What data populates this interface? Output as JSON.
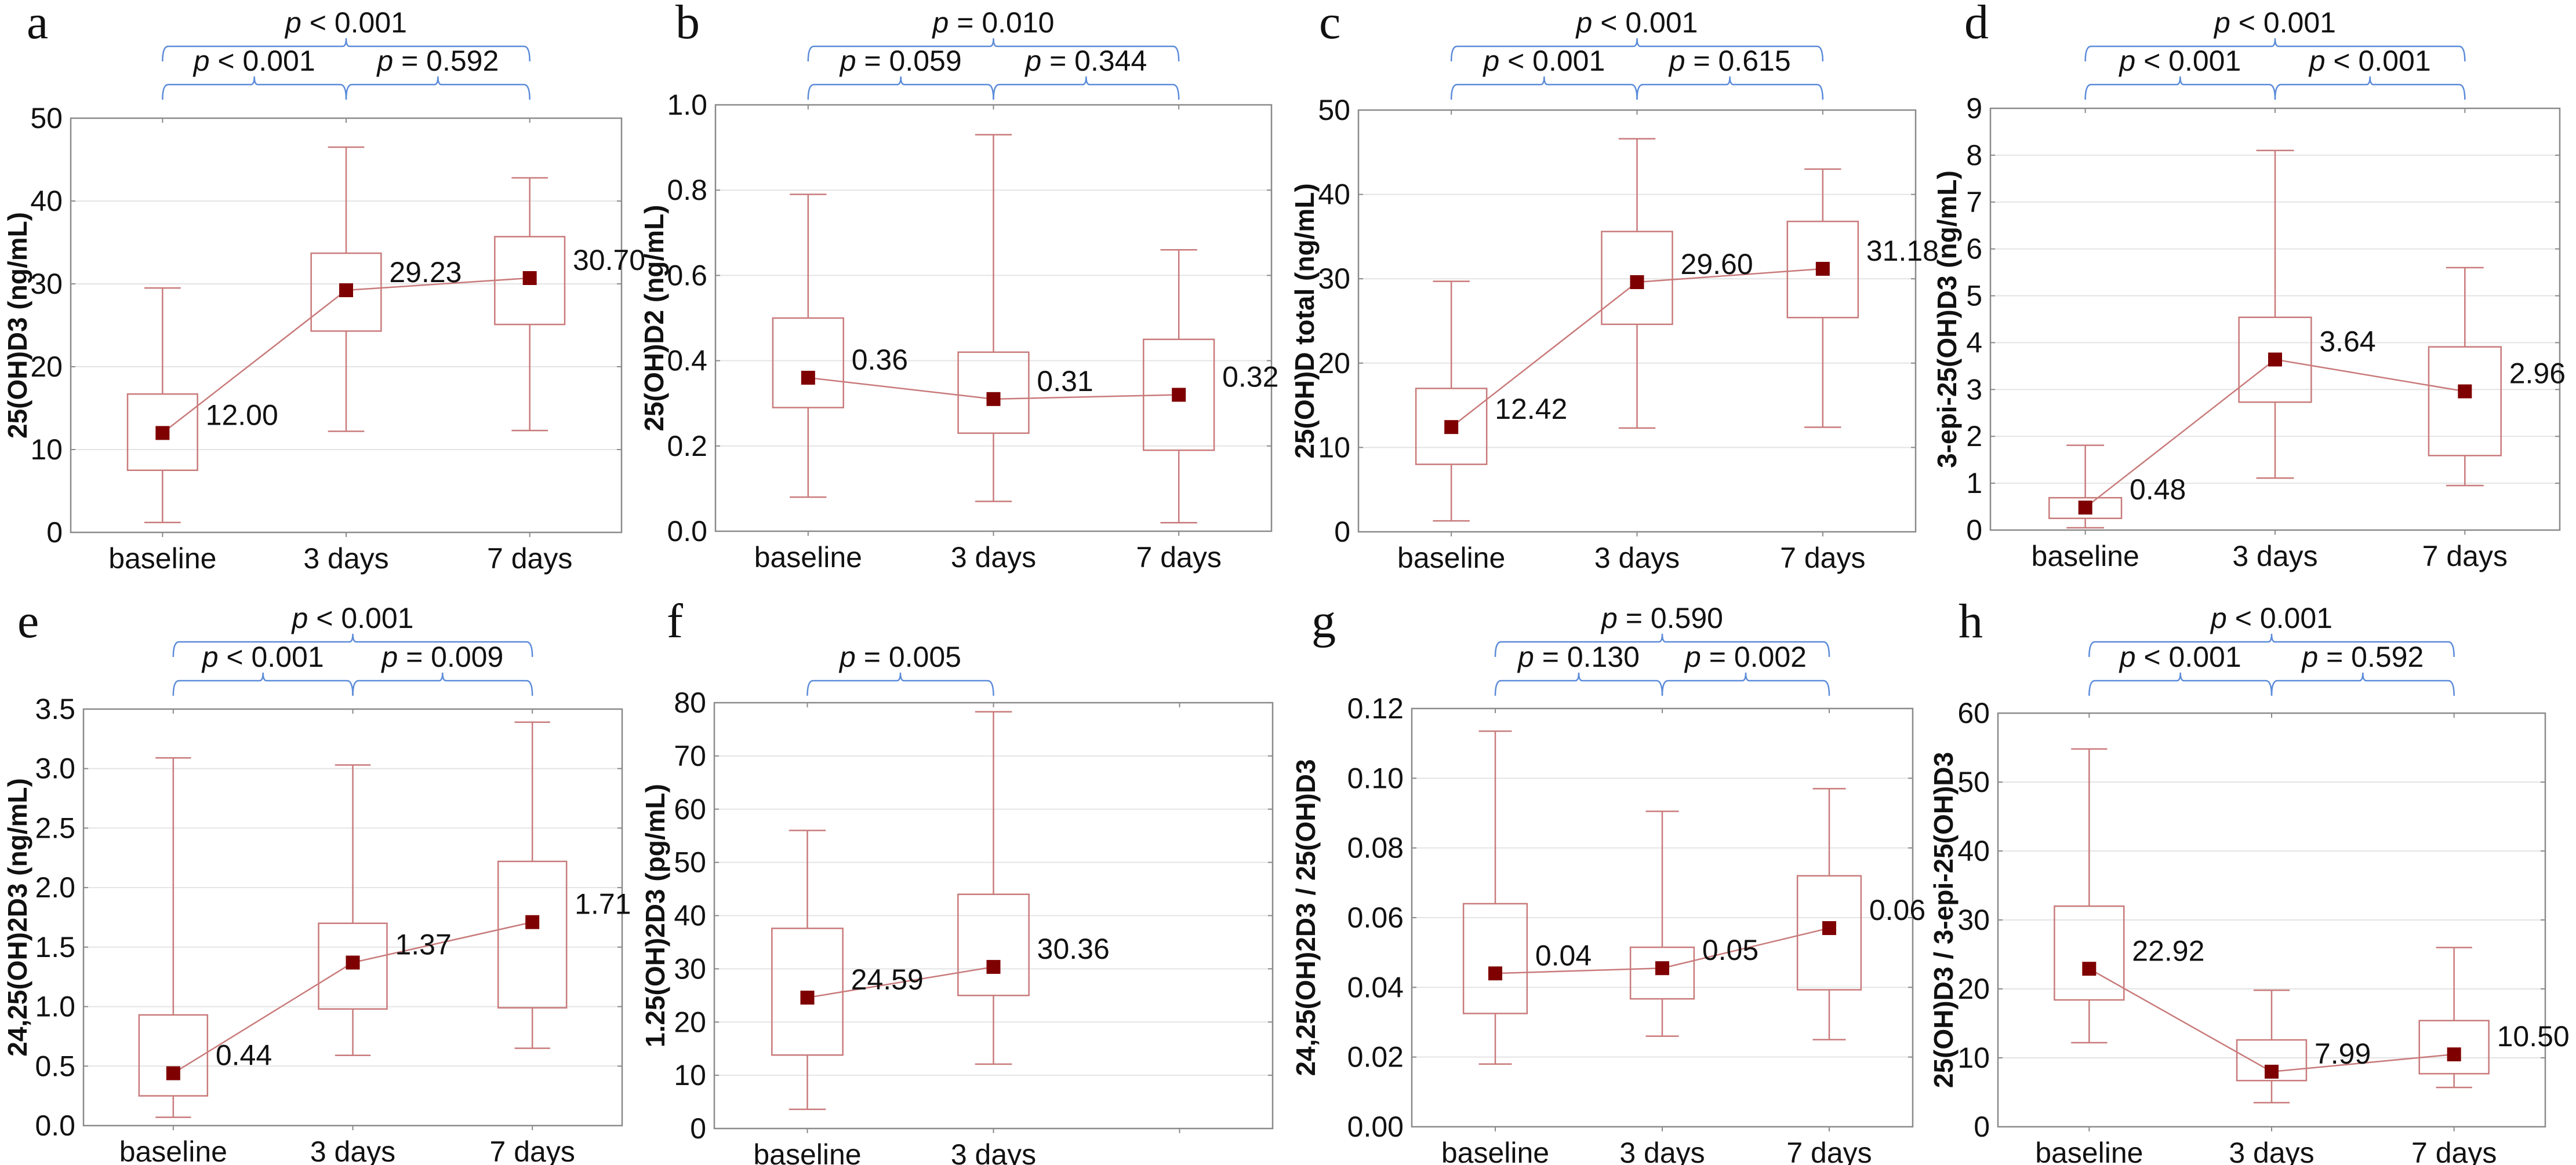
{
  "colors": {
    "box": "#c97a7a",
    "marker": "#7f0000",
    "bracket": "#5b8bd9",
    "frame": "#8a8a8a",
    "grid": "#e4e4e4"
  },
  "chart_data": [
    {
      "type": "box",
      "panel": "a",
      "ylabel": "25(OH)D3 (ng/mL)",
      "ylim": [
        0,
        50
      ],
      "yticks": [
        "0",
        "10",
        "20",
        "30",
        "40",
        "50"
      ],
      "categories": [
        "baseline",
        "3 days",
        "7 days"
      ],
      "x_slots": 3,
      "boxes": [
        {
          "min": 1.2,
          "q1": 7.5,
          "center": 12.0,
          "q3": 16.7,
          "max": 29.5,
          "label": "12.00"
        },
        {
          "min": 12.2,
          "q1": 24.3,
          "center": 29.23,
          "q3": 33.7,
          "max": 46.5,
          "label": "29.23"
        },
        {
          "min": 12.3,
          "q1": 25.1,
          "center": 30.7,
          "q3": 35.7,
          "max": 42.8,
          "label": "30.70"
        }
      ],
      "brackets": [
        {
          "from": 0,
          "to": 2,
          "level": "outer",
          "label": "p < 0.001"
        },
        {
          "from": 0,
          "to": 1,
          "level": "inner",
          "label": "p < 0.001"
        },
        {
          "from": 1,
          "to": 2,
          "level": "inner",
          "label": "p = 0.592"
        }
      ]
    },
    {
      "type": "box",
      "panel": "b",
      "ylabel": "25(OH)D2 (ng/mL)",
      "ylim": [
        0,
        1.0
      ],
      "yticks": [
        "0.0",
        "0.2",
        "0.4",
        "0.6",
        "0.8",
        "1.0"
      ],
      "categories": [
        "baseline",
        "3 days",
        "7 days"
      ],
      "x_slots": 3,
      "boxes": [
        {
          "min": 0.08,
          "q1": 0.29,
          "center": 0.36,
          "q3": 0.5,
          "max": 0.79,
          "label": "0.36"
        },
        {
          "min": 0.07,
          "q1": 0.23,
          "center": 0.31,
          "q3": 0.42,
          "max": 0.93,
          "label": "0.31"
        },
        {
          "min": 0.02,
          "q1": 0.19,
          "center": 0.32,
          "q3": 0.45,
          "max": 0.66,
          "label": "0.32"
        }
      ],
      "brackets": [
        {
          "from": 0,
          "to": 2,
          "level": "outer",
          "label": "p = 0.010"
        },
        {
          "from": 0,
          "to": 1,
          "level": "inner",
          "label": "p = 0.059"
        },
        {
          "from": 1,
          "to": 2,
          "level": "inner",
          "label": "p = 0.344"
        }
      ]
    },
    {
      "type": "box",
      "panel": "c",
      "ylabel": "25(OH)D total (ng/mL)",
      "ylim": [
        0,
        50
      ],
      "yticks": [
        "0",
        "10",
        "20",
        "30",
        "40",
        "50"
      ],
      "categories": [
        "baseline",
        "3 days",
        "7 days"
      ],
      "x_slots": 3,
      "boxes": [
        {
          "min": 1.3,
          "q1": 8.0,
          "center": 12.42,
          "q3": 17.0,
          "max": 29.7,
          "label": "12.42"
        },
        {
          "min": 12.3,
          "q1": 24.6,
          "center": 29.6,
          "q3": 35.6,
          "max": 46.6,
          "label": "29.60"
        },
        {
          "min": 12.4,
          "q1": 25.4,
          "center": 31.18,
          "q3": 36.8,
          "max": 43.0,
          "label": "31.18"
        }
      ],
      "brackets": [
        {
          "from": 0,
          "to": 2,
          "level": "outer",
          "label": "p < 0.001"
        },
        {
          "from": 0,
          "to": 1,
          "level": "inner",
          "label": "p < 0.001"
        },
        {
          "from": 1,
          "to": 2,
          "level": "inner",
          "label": "p = 0.615"
        }
      ]
    },
    {
      "type": "box",
      "panel": "d",
      "ylabel": "3-epi-25(OH)D3 (ng/mL)",
      "ylim": [
        0,
        9
      ],
      "yticks": [
        "0",
        "1",
        "2",
        "3",
        "4",
        "5",
        "6",
        "7",
        "8",
        "9"
      ],
      "categories": [
        "baseline",
        "3 days",
        "7 days"
      ],
      "x_slots": 3,
      "boxes": [
        {
          "min": 0.05,
          "q1": 0.25,
          "center": 0.48,
          "q3": 0.69,
          "max": 1.81,
          "label": "0.48"
        },
        {
          "min": 1.11,
          "q1": 2.73,
          "center": 3.64,
          "q3": 4.54,
          "max": 8.1,
          "label": "3.64"
        },
        {
          "min": 0.95,
          "q1": 1.59,
          "center": 2.96,
          "q3": 3.91,
          "max": 5.6,
          "label": "2.96"
        }
      ],
      "brackets": [
        {
          "from": 0,
          "to": 2,
          "level": "outer",
          "label": "p < 0.001"
        },
        {
          "from": 0,
          "to": 1,
          "level": "inner",
          "label": "p < 0.001"
        },
        {
          "from": 1,
          "to": 2,
          "level": "inner",
          "label": "p < 0.001"
        }
      ]
    },
    {
      "type": "box",
      "panel": "e",
      "ylabel": "24,25(OH)2D3 (ng/mL)",
      "ylim": [
        0,
        3.5
      ],
      "yticks": [
        "0.0",
        "0.5",
        "1.0",
        "1.5",
        "2.0",
        "2.5",
        "3.0",
        "3.5"
      ],
      "categories": [
        "baseline",
        "3 days",
        "7 days"
      ],
      "x_slots": 3,
      "boxes": [
        {
          "min": 0.07,
          "q1": 0.25,
          "center": 0.44,
          "q3": 0.93,
          "max": 3.09,
          "label": "0.44"
        },
        {
          "min": 0.59,
          "q1": 0.98,
          "center": 1.37,
          "q3": 1.7,
          "max": 3.03,
          "label": "1.37"
        },
        {
          "min": 0.65,
          "q1": 0.99,
          "center": 1.71,
          "q3": 2.22,
          "max": 3.39,
          "label": "1.71"
        }
      ],
      "brackets": [
        {
          "from": 0,
          "to": 2,
          "level": "outer",
          "label": "p < 0.001"
        },
        {
          "from": 0,
          "to": 1,
          "level": "inner",
          "label": "p < 0.001"
        },
        {
          "from": 1,
          "to": 2,
          "level": "inner",
          "label": "p = 0.009"
        }
      ]
    },
    {
      "type": "box",
      "panel": "f",
      "ylabel": "1.25(OH)2D3 (pg/mL)",
      "ylim": [
        0,
        80
      ],
      "yticks": [
        "0",
        "10",
        "20",
        "30",
        "40",
        "50",
        "60",
        "70",
        "80"
      ],
      "categories": [
        "baseline",
        "3 days"
      ],
      "x_slots": 3,
      "boxes": [
        {
          "min": 3.6,
          "q1": 13.8,
          "center": 24.59,
          "q3": 37.6,
          "max": 56.0,
          "label": "24.59"
        },
        {
          "min": 12.1,
          "q1": 25.0,
          "center": 30.36,
          "q3": 44.0,
          "max": 78.3,
          "label": "30.36"
        }
      ],
      "brackets": [
        {
          "from": 0,
          "to": 1,
          "level": "inner",
          "label": "p = 0.005"
        }
      ]
    },
    {
      "type": "box",
      "panel": "g",
      "ylabel": "24,25(OH)2D3 / 25(OH)D3",
      "ylim": [
        0,
        0.12
      ],
      "yticks": [
        "0.00",
        "0.02",
        "0.04",
        "0.06",
        "0.08",
        "0.10",
        "0.12"
      ],
      "categories": [
        "baseline",
        "3 days",
        "7 days"
      ],
      "x_slots": 3,
      "boxes": [
        {
          "min": 0.018,
          "q1": 0.0325,
          "center": 0.044,
          "q3": 0.064,
          "max": 0.1135,
          "label": "0.04"
        },
        {
          "min": 0.026,
          "q1": 0.0367,
          "center": 0.0455,
          "q3": 0.0515,
          "max": 0.0905,
          "label": "0.05"
        },
        {
          "min": 0.025,
          "q1": 0.0393,
          "center": 0.057,
          "q3": 0.072,
          "max": 0.097,
          "label": "0.06"
        }
      ],
      "brackets": [
        {
          "from": 0,
          "to": 2,
          "level": "outer",
          "label": "p = 0.590"
        },
        {
          "from": 0,
          "to": 1,
          "level": "inner",
          "label": "p = 0.130"
        },
        {
          "from": 1,
          "to": 2,
          "level": "inner",
          "label": "p = 0.002"
        }
      ]
    },
    {
      "type": "box",
      "panel": "h",
      "ylabel": "25(OH)D3 / 3-epi-25(OH)D3",
      "ylim": [
        0,
        60
      ],
      "yticks": [
        "0",
        "10",
        "20",
        "30",
        "40",
        "50",
        "60"
      ],
      "categories": [
        "baseline",
        "3 days",
        "7 days"
      ],
      "x_slots": 3,
      "boxes": [
        {
          "min": 12.2,
          "q1": 18.4,
          "center": 22.92,
          "q3": 32.0,
          "max": 54.8,
          "label": "22.92"
        },
        {
          "min": 3.5,
          "q1": 6.7,
          "center": 7.99,
          "q3": 12.6,
          "max": 19.8,
          "label": "7.99"
        },
        {
          "min": 5.7,
          "q1": 7.7,
          "center": 10.5,
          "q3": 15.4,
          "max": 26.0,
          "label": "10.50"
        }
      ],
      "brackets": [
        {
          "from": 0,
          "to": 2,
          "level": "outer",
          "label": "p < 0.001"
        },
        {
          "from": 0,
          "to": 1,
          "level": "inner",
          "label": "p < 0.001"
        },
        {
          "from": 1,
          "to": 2,
          "level": "inner",
          "label": "p = 0.592"
        }
      ]
    }
  ]
}
